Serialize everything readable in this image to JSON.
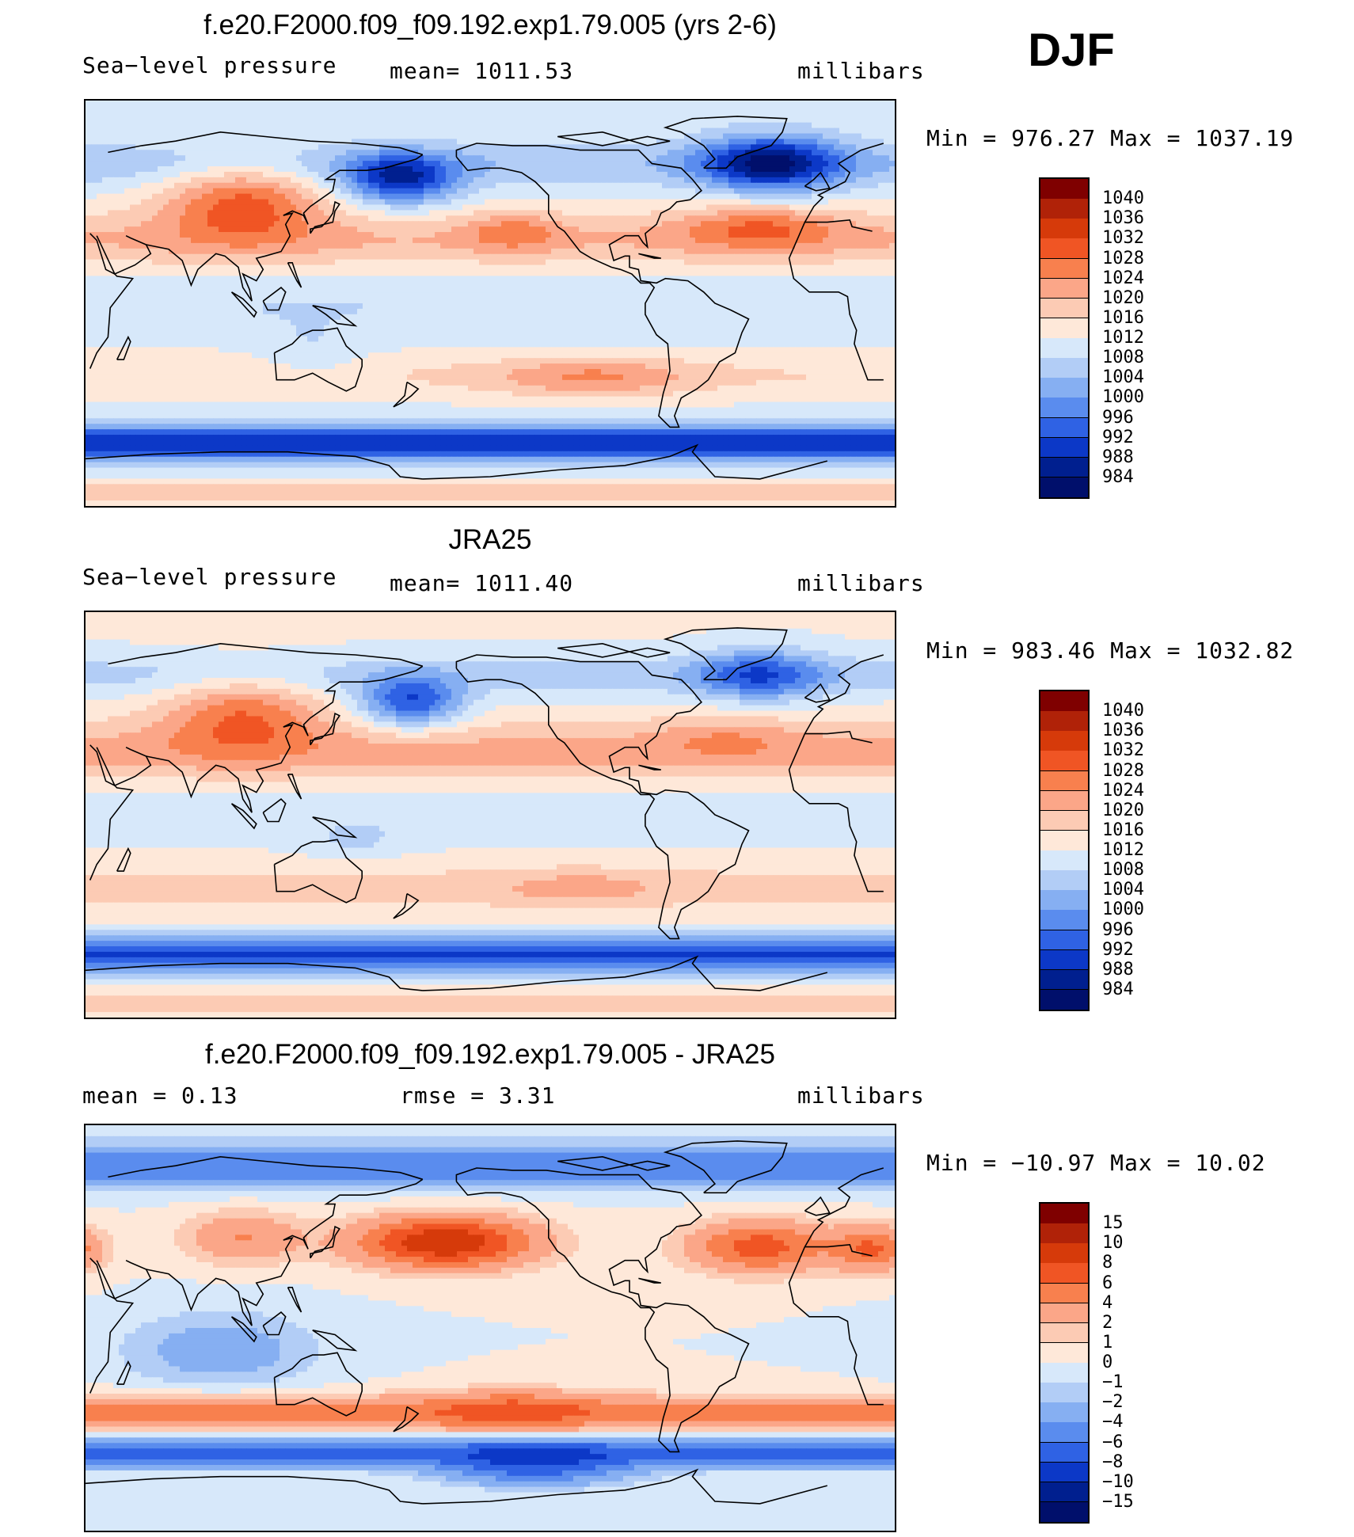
{
  "season": "DJF",
  "chart_data": [
    {
      "type": "heatmap",
      "title": "f.e20.F2000.f09_f09.192.exp1.79.005 (yrs 2-6)",
      "left_label": "Sea−level pressure",
      "center_label": "mean=  1011.53",
      "right_label": "millibars",
      "stats": "Min  =  976.27  Max  =  1037.19",
      "colorbar": {
        "levels": [
          "1040",
          "1036",
          "1032",
          "1028",
          "1024",
          "1020",
          "1016",
          "1012",
          "1008",
          "1004",
          "1000",
          "996",
          "992",
          "988",
          "984"
        ],
        "colors": [
          "#7f0000",
          "#b02208",
          "#d63a0a",
          "#f05524",
          "#f8804e",
          "#fba688",
          "#fccbb4",
          "#fee8d9",
          "#d7e8fa",
          "#b2cdf6",
          "#86aff2",
          "#5a8cee",
          "#2f62e4",
          "#0c38c7",
          "#001f8f",
          "#000f6b"
        ]
      },
      "field": "mslp",
      "variant": "model"
    },
    {
      "type": "heatmap",
      "title": "JRA25",
      "left_label": "Sea−level pressure",
      "center_label": "mean=  1011.40",
      "right_label": "millibars",
      "stats": "Min  =  983.46  Max  =  1032.82",
      "colorbar": {
        "levels": [
          "1040",
          "1036",
          "1032",
          "1028",
          "1024",
          "1020",
          "1016",
          "1012",
          "1008",
          "1004",
          "1000",
          "996",
          "992",
          "988",
          "984"
        ],
        "colors": [
          "#7f0000",
          "#b02208",
          "#d63a0a",
          "#f05524",
          "#f8804e",
          "#fba688",
          "#fccbb4",
          "#fee8d9",
          "#d7e8fa",
          "#b2cdf6",
          "#86aff2",
          "#5a8cee",
          "#2f62e4",
          "#0c38c7",
          "#001f8f",
          "#000f6b"
        ]
      },
      "field": "mslp",
      "variant": "obs"
    },
    {
      "type": "heatmap",
      "title": "f.e20.F2000.f09_f09.192.exp1.79.005 - JRA25",
      "left_label": "mean  =     0.13",
      "center_label": "rmse  =     3.31",
      "right_label": "millibars",
      "stats": "Min  =  −10.97  Max  =    10.02",
      "colorbar": {
        "levels": [
          "15",
          "10",
          "8",
          "6",
          "4",
          "2",
          "1",
          "0",
          "−1",
          "−2",
          "−4",
          "−6",
          "−8",
          "−10",
          "−15"
        ],
        "colors": [
          "#7f0000",
          "#b02208",
          "#d63a0a",
          "#f05524",
          "#f8804e",
          "#fba688",
          "#fccbb4",
          "#fee8d9",
          "#d7e8fa",
          "#b2cdf6",
          "#86aff2",
          "#5a8cee",
          "#2f62e4",
          "#0c38c7",
          "#001f8f",
          "#000f6b"
        ]
      },
      "field": "diff",
      "variant": "diff"
    }
  ]
}
